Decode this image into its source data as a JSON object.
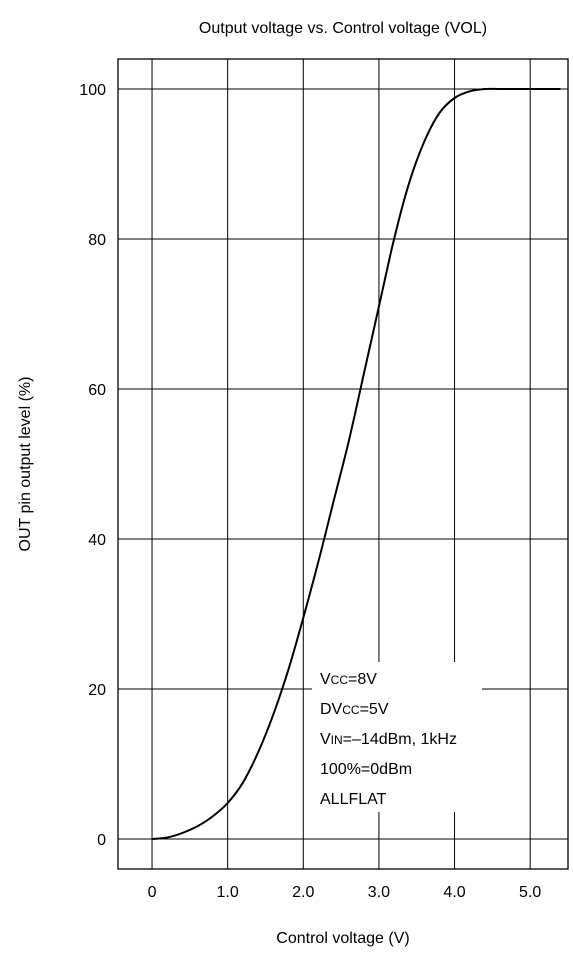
{
  "chart_data": {
    "type": "line",
    "title": "Output voltage vs. Control voltage (VOL)",
    "xlabel": "Control voltage (V)",
    "ylabel": "OUT pin output level (%)",
    "xlim": [
      -0.45,
      5.5
    ],
    "ylim": [
      -4,
      104
    ],
    "grid": true,
    "x_ticks": [
      0,
      1,
      2,
      3,
      4,
      5
    ],
    "x_tick_labels": [
      "0",
      "1.0",
      "2.0",
      "3.0",
      "4.0",
      "5.0"
    ],
    "y_ticks": [
      0,
      20,
      40,
      60,
      80,
      100
    ],
    "y_tick_labels": [
      "0",
      "20",
      "40",
      "60",
      "80",
      "100"
    ],
    "series": [
      {
        "x": [
          0,
          0.2,
          0.4,
          0.6,
          0.8,
          1.0,
          1.2,
          1.4,
          1.6,
          1.8,
          2.0,
          2.2,
          2.4,
          2.6,
          2.8,
          3.0,
          3.2,
          3.4,
          3.6,
          3.8,
          4.0,
          4.2,
          4.4,
          4.6,
          4.8,
          5.0,
          5.2,
          5.4
        ],
        "y": [
          0,
          0.2,
          0.8,
          1.7,
          3.0,
          4.8,
          7.5,
          11.5,
          16.5,
          22.5,
          29.5,
          37.0,
          45.0,
          53.0,
          62.0,
          71.0,
          80.0,
          87.5,
          93.0,
          96.8,
          98.8,
          99.7,
          100,
          100,
          100,
          100,
          100,
          100
        ]
      }
    ],
    "annotation": {
      "lines": [
        {
          "main": "V",
          "sub": "CC",
          "rest": "=8V"
        },
        {
          "main": "DV",
          "sub": "CC",
          "rest": "=5V"
        },
        {
          "main": "V",
          "sub": "IN",
          "rest": "=–14dBm, 1kHz"
        },
        {
          "main": "100%=0dBm",
          "sub": "",
          "rest": ""
        },
        {
          "main": "ALLFLAT",
          "sub": "",
          "rest": ""
        }
      ]
    }
  }
}
